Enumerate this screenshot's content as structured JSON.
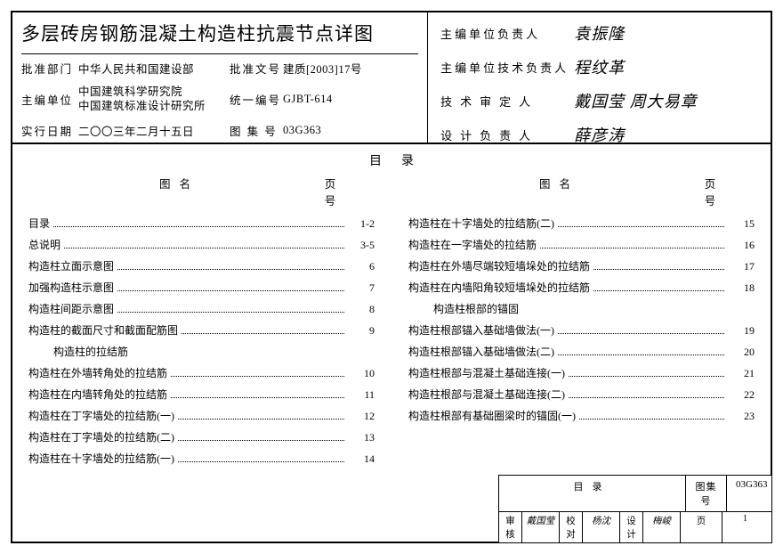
{
  "title": "多层砖房钢筋混凝土构造柱抗震节点详图",
  "meta": {
    "approve_dept_label": "批准部门",
    "approve_dept": "中华人民共和国建设部",
    "editor_unit_label": "主编单位",
    "editor_unit_l1": "中国建筑科学研究院",
    "editor_unit_l2": "中国建筑标准设计研究所",
    "exec_date_label": "实行日期",
    "exec_date": "二〇〇三年二月十五日",
    "approve_doc_label": "批准文号",
    "approve_doc": "建质[2003]17号",
    "unified_no_label": "统一编号",
    "unified_no": "GJBT-614",
    "atlas_no_label": "图 集 号",
    "atlas_no": "03G363"
  },
  "sigs": {
    "s1_label": "主编单位负责人",
    "s1_val": "袁振隆",
    "s2_label": "主编单位技术负责人",
    "s2_val": "程纹革",
    "s3_label": "技术审定人",
    "s3_val": "戴国莹 周大易章",
    "s4_label": "设计负责人",
    "s4_val": "薛彦涛"
  },
  "toc": {
    "title": "目录",
    "head_name": "图名",
    "head_page": "页号",
    "left": [
      {
        "name": "目录",
        "page": "1-2"
      },
      {
        "name": "总说明",
        "page": "3-5"
      },
      {
        "name": "构造柱立面示意图",
        "page": "6"
      },
      {
        "name": "加强构造柱示意图",
        "page": "7"
      },
      {
        "name": "构造柱间距示意图",
        "page": "8"
      },
      {
        "name": "构造柱的截面尺寸和截面配筋图",
        "page": "9"
      },
      {
        "name": "构造柱的拉结筋",
        "section": true
      },
      {
        "name": "构造柱在外墙转角处的拉结筋",
        "page": "10"
      },
      {
        "name": "构造柱在内墙转角处的拉结筋",
        "page": "11"
      },
      {
        "name": "构造柱在丁字墙处的拉结筋(一)",
        "page": "12"
      },
      {
        "name": "构造柱在丁字墙处的拉结筋(二)",
        "page": "13"
      },
      {
        "name": "构造柱在十字墙处的拉结筋(一)",
        "page": "14"
      }
    ],
    "right": [
      {
        "name": "构造柱在十字墙处的拉结筋(二)",
        "page": "15"
      },
      {
        "name": "构造柱在一字墙处的拉结筋",
        "page": "16"
      },
      {
        "name": "构造柱在外墙尽端较短墙垛处的拉结筋",
        "page": "17"
      },
      {
        "name": "构造柱在内墙阳角较短墙垛处的拉结筋",
        "page": "18"
      },
      {
        "name": "构造柱根部的锚固",
        "section": true
      },
      {
        "name": "构造柱根部锚入基础墙做法(一)",
        "page": "19"
      },
      {
        "name": "构造柱根部锚入基础墙做法(二)",
        "page": "20"
      },
      {
        "name": "构造柱根部与混凝土基础连接(一)",
        "page": "21"
      },
      {
        "name": "构造柱根部与混凝土基础连接(二)",
        "page": "22"
      },
      {
        "name": "构造柱根部有基础圈梁时的锚固(一)",
        "page": "23"
      }
    ]
  },
  "footer": {
    "top_label": "目录",
    "atlas_label": "图集号",
    "atlas_val": "03G363",
    "审核": "审核",
    "审核v": "戴国莹",
    "校对": "校对",
    "校对v": "杨沈",
    "设计": "设计",
    "设计v": "梅峻",
    "页": "页",
    "页v": "1"
  }
}
